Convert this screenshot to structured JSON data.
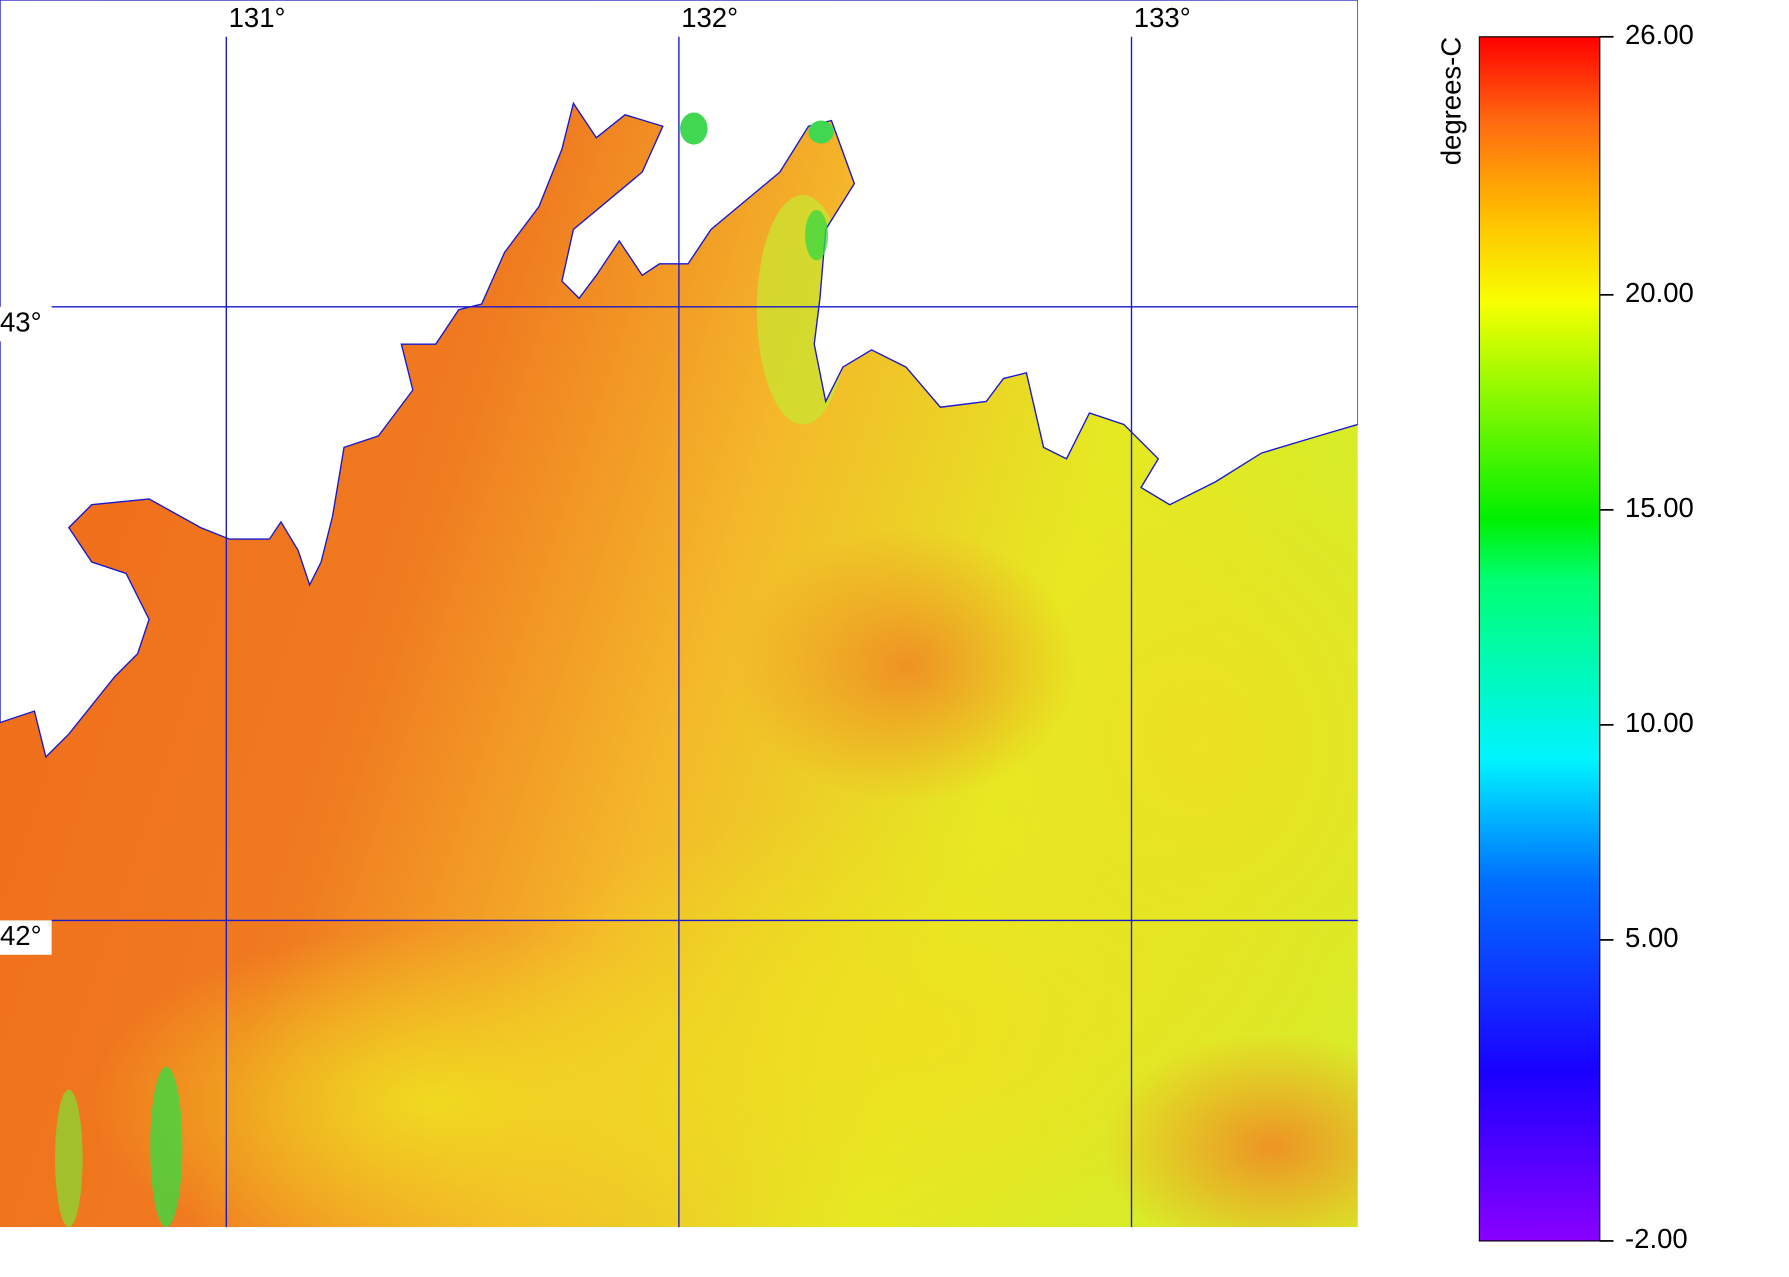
{
  "chart_data": {
    "type": "map",
    "xlim": [
      130.5,
      133.5
    ],
    "xticks": [
      {
        "value": 131,
        "label": "131°"
      },
      {
        "value": 132,
        "label": "132°"
      },
      {
        "value": 133,
        "label": "133°"
      }
    ],
    "ylim": [
      41.5,
      43.5
    ],
    "yticks": [
      {
        "value": 42,
        "label": "42°"
      },
      {
        "value": 43,
        "label": "43°"
      }
    ],
    "grid": true,
    "grid_color": "#1a1acc",
    "colorbar": {
      "label": "degrees-C",
      "lim": [
        -2,
        26
      ],
      "ticks": [
        {
          "value": 26,
          "label": "26.00"
        },
        {
          "value": 20,
          "label": "20.00"
        },
        {
          "value": 15,
          "label": "15.00"
        },
        {
          "value": 10,
          "label": "10.00"
        },
        {
          "value": 5,
          "label": "5.00"
        },
        {
          "value": -2,
          "label": "-2.00"
        }
      ]
    }
  }
}
